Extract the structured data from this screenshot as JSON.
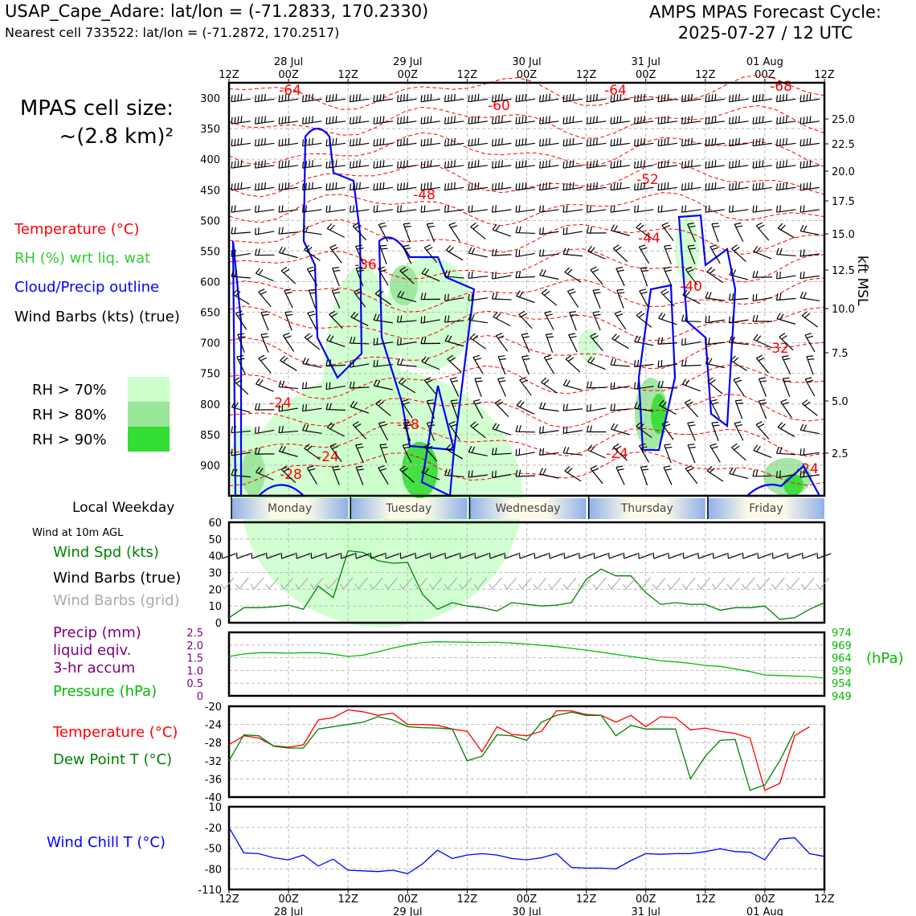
{
  "header": {
    "station_line": "USAP_Cape_Adare: lat/lon = (-71.2833, 170.2330)",
    "nearest_line": "Nearest cell 733522: lat/lon = (-71.2872, 170.2517)",
    "forecast_line1": "AMPS MPAS Forecast Cycle:",
    "forecast_line2": "2025-07-27 / 12 UTC",
    "cell_size_line1": "MPAS cell size:",
    "cell_size_line2": "~(2.8 km)²"
  },
  "legend": {
    "temperature": "Temperature (°C)",
    "rh": "RH (%) wrt liq. wat",
    "cloud": "Cloud/Precip outline",
    "wind": "Wind Barbs (kts) (true)",
    "rh70": "RH > 70%",
    "rh80": "RH > 80%",
    "rh90": "RH > 90%"
  },
  "colors": {
    "temperature": "#ff0000",
    "rh_text": "#33cc33",
    "cloud": "#0000ff",
    "rh70": "#ccffcc",
    "rh80": "#99e699",
    "rh90": "#33dd33",
    "wind_speed": "#008000",
    "pressure": "#00bb00",
    "precip": "#800080",
    "dewpoint": "#008000",
    "windchill": "#0000ff",
    "grid_barbs": "#aaaaaa"
  },
  "time_axis": {
    "top_labels": [
      "12Z",
      "00Z",
      "12Z",
      "00Z",
      "12Z",
      "00Z",
      "12Z",
      "00Z",
      "12Z",
      "00Z",
      "12Z"
    ],
    "date_labels": [
      "28 Jul",
      "29 Jul",
      "30 Jul",
      "31 Jul",
      "01 Aug"
    ]
  },
  "weekday": {
    "label": "Local Weekday",
    "days": [
      "Monday",
      "Tuesday",
      "Wednesday",
      "Thursday",
      "Friday"
    ]
  },
  "chart_data": [
    {
      "id": "cross_section",
      "type": "heatmap",
      "y_label_left": "",
      "pressure_ticks": [
        300,
        350,
        400,
        450,
        500,
        550,
        600,
        650,
        700,
        750,
        800,
        850,
        900
      ],
      "height_ticks_kft": [
        "25.0",
        "22.5",
        "20.0",
        "17.5",
        "15.0",
        "12.5",
        "10.0",
        "7.5",
        "5.0",
        "2.5"
      ],
      "ylabel_right": "kft MSL",
      "temperature_labels": [
        "-64",
        "-60",
        "-64",
        "-68",
        "-48",
        "-52",
        "-36",
        "-44",
        "-40",
        "-32",
        "-24",
        "-28",
        "-24",
        "-24",
        "-28",
        "-24"
      ]
    },
    {
      "id": "wind_10m",
      "type": "line",
      "panel_label": "Wind at 10m AGL",
      "series_names": [
        "Wind Spd (kts)",
        "Wind Barbs (true)",
        "Wind Barbs (grid)"
      ],
      "ylim": [
        0,
        60
      ],
      "yticks": [
        0,
        10,
        20,
        30,
        40,
        50,
        60
      ],
      "x_hours": [
        0,
        3,
        6,
        9,
        12,
        15,
        18,
        21,
        24,
        27,
        30,
        33,
        36,
        39,
        42,
        45,
        48,
        51,
        54,
        57,
        60,
        63,
        66,
        69,
        72,
        75,
        78,
        81,
        84,
        87,
        90,
        93,
        96,
        99,
        102,
        105,
        108,
        111,
        114,
        117,
        120
      ],
      "wind_speed": [
        3,
        9,
        9,
        9.5,
        10.5,
        8,
        22,
        15,
        43,
        42,
        37,
        35.5,
        36,
        17,
        8,
        12,
        10,
        9,
        7,
        12,
        11,
        10,
        10.5,
        12,
        26,
        32,
        28,
        28,
        18,
        11,
        12,
        11,
        11,
        7.5,
        9,
        9,
        10,
        2,
        3,
        8,
        12
      ]
    },
    {
      "id": "precip_pressure",
      "type": "line",
      "series_names": [
        "Precip (mm)",
        "liquid eqiv.",
        "3-hr accum",
        "Pressure (hPa)"
      ],
      "precip_ylim": [
        0,
        2.5
      ],
      "precip_ticks": [
        "0",
        "0.5",
        "1.0",
        "1.5",
        "2.0",
        "2.5"
      ],
      "pressure_ylim": [
        949,
        974
      ],
      "pressure_ticks": [
        "949",
        "954",
        "959",
        "964",
        "969",
        "974"
      ],
      "pressure_unit": "(hPa)",
      "pressure": [
        964.5,
        965.5,
        966,
        966,
        965.8,
        966,
        966,
        965.4,
        964.5,
        965,
        966.3,
        967.8,
        969,
        970,
        970.3,
        970.2,
        970.1,
        970,
        970.1,
        969.8,
        969.4,
        968.9,
        968.4,
        967.7,
        967,
        966.2,
        965.3,
        964.5,
        963.7,
        962.8,
        962.4,
        961.8,
        961,
        960.6,
        959.6,
        958.6,
        957.2,
        957,
        956.8,
        956.6,
        956
      ]
    },
    {
      "id": "temp_dewpoint",
      "type": "line",
      "series_names": [
        "Temperature (°C)",
        "Dew Point T (°C)"
      ],
      "ylim": [
        -40,
        -20
      ],
      "yticks": [
        -40,
        -36,
        -32,
        -28,
        -24,
        -20
      ],
      "temperature": [
        -28.5,
        -26.5,
        -27,
        -28.7,
        -29,
        -28.5,
        -23,
        -22.5,
        -20.8,
        -21.2,
        -22,
        -21.5,
        -24,
        -24,
        -24.2,
        -25,
        -25.5,
        -30,
        -24.5,
        -26.2,
        -26.5,
        -25.5,
        -21,
        -21,
        -21.8,
        -22,
        -23.5,
        -22,
        -24.5,
        -22.3,
        -22.5,
        -25.2,
        -24.8,
        -25.5,
        -26,
        -27,
        -38.5,
        -37,
        -26.5,
        -24.5,
        null
      ],
      "dewpoint": [
        -32,
        -26.3,
        -26.5,
        -28.8,
        -29.2,
        -29.2,
        -25,
        -24.5,
        -24,
        -23.5,
        -22.3,
        -23,
        -24.5,
        -24.7,
        -24.8,
        -25,
        -32,
        -31,
        -26.3,
        -26.5,
        -27.5,
        -23.5,
        -22,
        -21.3,
        -22,
        -22,
        -26.5,
        -24.2,
        -25,
        -25,
        -25,
        -36,
        -31,
        -27.5,
        -27.3,
        -38.5,
        -37.3,
        -32,
        -25.5,
        null,
        null
      ]
    },
    {
      "id": "wind_chill",
      "type": "line",
      "series_names": [
        "Wind Chill T (°C)"
      ],
      "ylim": [
        -110,
        10
      ],
      "yticks": [
        -110,
        -80,
        -50,
        -20,
        10
      ],
      "wind_chill": [
        -20,
        -57,
        -58,
        -64,
        -67,
        -60,
        -76,
        -66,
        -82,
        -83,
        -84,
        -82,
        -87,
        -73,
        -53,
        -65,
        -60,
        -58,
        -60,
        -65,
        -67,
        -64,
        -58,
        -78,
        -79,
        -79,
        -80,
        -68,
        -58,
        -59,
        -58,
        -58,
        -55,
        -51,
        -55,
        -56,
        -67,
        -37,
        -35,
        -58,
        -62
      ]
    }
  ]
}
